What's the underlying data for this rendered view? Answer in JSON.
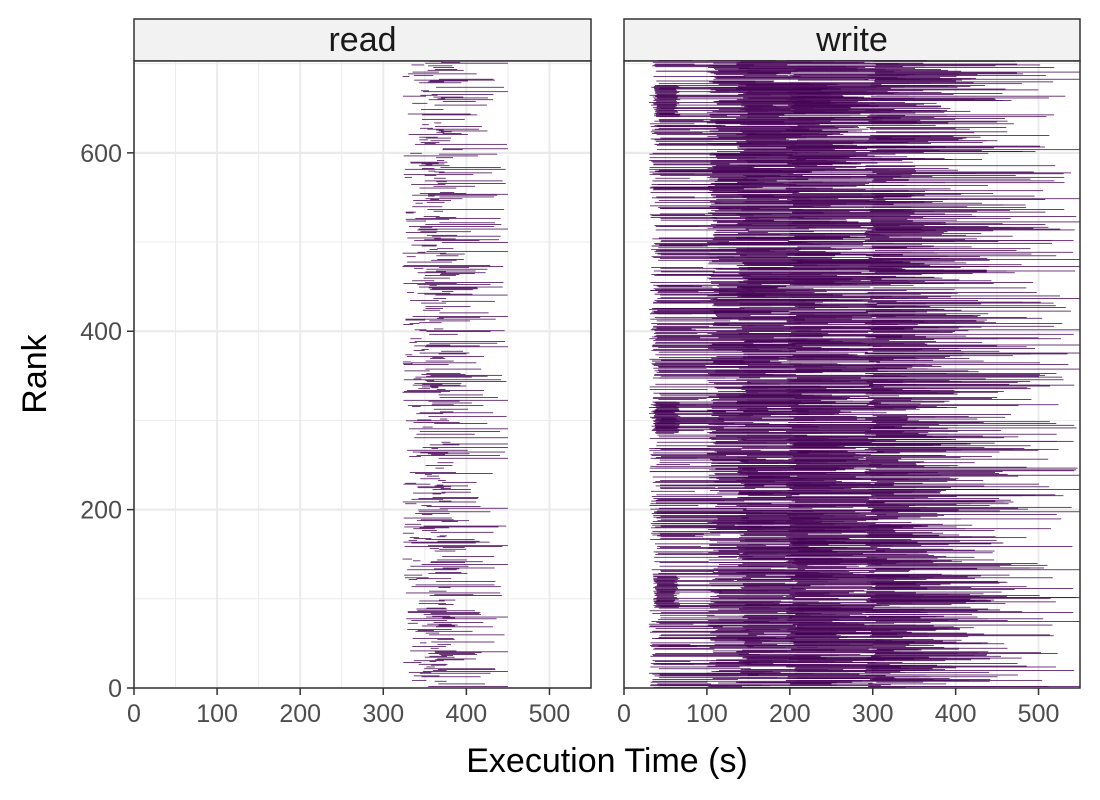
{
  "chart_data": {
    "type": "bar",
    "orientation": "horizontal-segments",
    "xlabel": "Execution Time (s)",
    "ylabel": "Rank",
    "xlim": [
      0,
      550
    ],
    "ylim": [
      0,
      703
    ],
    "x_ticks": [
      0,
      100,
      200,
      300,
      400,
      500
    ],
    "y_ticks": [
      0,
      200,
      400,
      600
    ],
    "grid": true,
    "legend": "none",
    "color": "#440154",
    "rank_count": 704,
    "panels": [
      {
        "label": "read",
        "approximate_ranges": [
          {
            "rank_from": 0,
            "rank_to": 703,
            "start_min": 323,
            "start_max": 372,
            "end_min": 335,
            "end_max": 450
          }
        ]
      },
      {
        "label": "write",
        "approximate_ranges": [
          {
            "rank_from": 0,
            "rank_to": 703,
            "start_min": 30,
            "start_max": 300,
            "end_min": 60,
            "end_max": 550
          },
          {
            "rank_from": 90,
            "rank_to": 125,
            "start_min": 35,
            "start_max": 40,
            "end_min": 60,
            "end_max": 68
          },
          {
            "rank_from": 285,
            "rank_to": 320,
            "start_min": 35,
            "start_max": 40,
            "end_min": 60,
            "end_max": 68
          },
          {
            "rank_from": 640,
            "rank_to": 675,
            "start_min": 35,
            "start_max": 40,
            "end_min": 60,
            "end_max": 68
          }
        ]
      }
    ]
  }
}
